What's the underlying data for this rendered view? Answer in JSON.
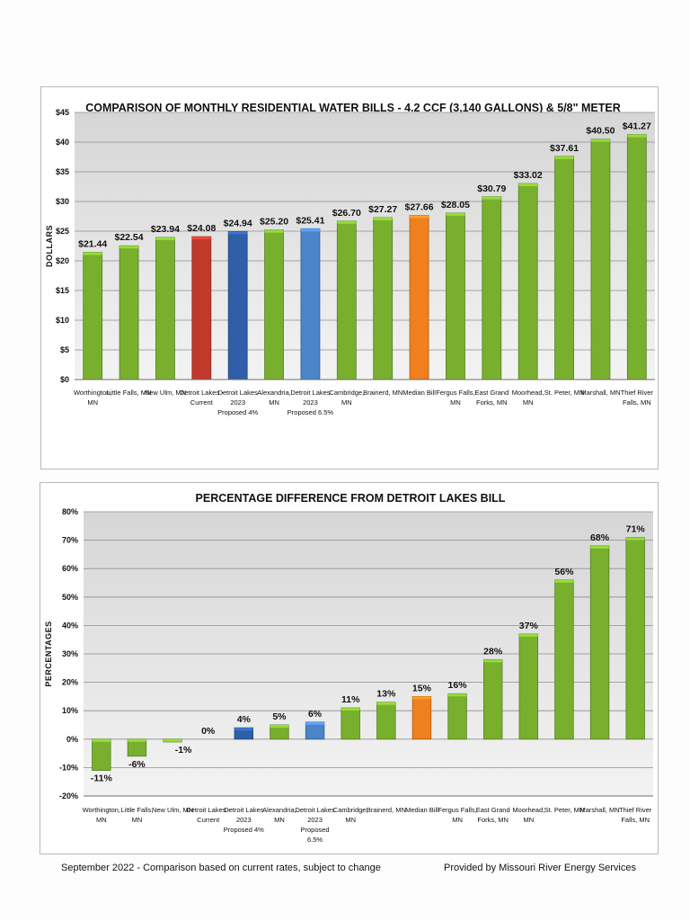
{
  "chart_data": [
    {
      "type": "bar",
      "title": "COMPARISON OF MONTHLY RESIDENTIAL WATER BILLS - 4.2 CCF (3,140 GALLONS) & 5/8\" METER",
      "ylabel": "DOLLARS",
      "xlabel": "",
      "ylim": [
        0,
        45
      ],
      "yticks": [
        "$0",
        "$5",
        "$10",
        "$15",
        "$20",
        "$25",
        "$30",
        "$35",
        "$40",
        "$45"
      ],
      "grid": true,
      "categories": [
        [
          "Worthington,",
          "MN"
        ],
        [
          "Little Falls, MN"
        ],
        [
          "New Ulm, MN"
        ],
        [
          "Detroit Lakes -",
          "Current"
        ],
        [
          "Detroit Lakes",
          "2023",
          "Proposed 4%"
        ],
        [
          "Alexandria,",
          "MN"
        ],
        [
          "Detroit Lakes",
          "2023",
          "Proposed 6.5%"
        ],
        [
          "Cambridge,",
          "MN"
        ],
        [
          "Brainerd, MN"
        ],
        [
          "Median Bill"
        ],
        [
          "Fergus Falls,",
          "MN"
        ],
        [
          "East Grand",
          "Forks, MN"
        ],
        [
          "Moorhead,",
          "MN"
        ],
        [
          "St. Peter, MN"
        ],
        [
          "Marshall, MN"
        ],
        [
          "Thief River",
          "Falls, MN"
        ]
      ],
      "values": [
        21.44,
        22.54,
        23.94,
        24.08,
        24.94,
        25.2,
        25.41,
        26.7,
        27.27,
        27.66,
        28.05,
        30.79,
        33.02,
        37.61,
        40.5,
        41.27
      ],
      "labels": [
        "$21.44",
        "$22.54",
        "$23.94",
        "$24.08",
        "$24.94",
        "$25.20",
        "$25.41",
        "$26.70",
        "$27.27",
        "$27.66",
        "$28.05",
        "$30.79",
        "$33.02",
        "$37.61",
        "$40.50",
        "$41.27"
      ],
      "colors": [
        "#78b02e",
        "#78b02e",
        "#78b02e",
        "#c0392b",
        "#2e5fa8",
        "#78b02e",
        "#4a84c9",
        "#78b02e",
        "#78b02e",
        "#f07f1e",
        "#78b02e",
        "#78b02e",
        "#78b02e",
        "#78b02e",
        "#78b02e",
        "#78b02e"
      ]
    },
    {
      "type": "bar",
      "title": "PERCENTAGE DIFFERENCE FROM DETROIT LAKES BILL",
      "ylabel": "PERCENTAGES",
      "xlabel": "",
      "ylim": [
        -20,
        80
      ],
      "yticks": [
        "-20%",
        "-10%",
        "0%",
        "10%",
        "20%",
        "30%",
        "40%",
        "50%",
        "60%",
        "70%",
        "80%"
      ],
      "grid": true,
      "categories": [
        [
          "Worthington,",
          "MN"
        ],
        [
          "Little Falls,",
          "MN"
        ],
        [
          "New Ulm, MN"
        ],
        [
          "Detroit Lakes -",
          "Current"
        ],
        [
          "Detroit Lakes",
          "2023",
          "Proposed 4%"
        ],
        [
          "Alexandria,",
          "MN"
        ],
        [
          "Detroit Lakes",
          "2023",
          "Proposed",
          "6.5%"
        ],
        [
          "Cambridge,",
          "MN"
        ],
        [
          "Brainerd, MN"
        ],
        [
          "Median Bill"
        ],
        [
          "Fergus Falls,",
          "MN"
        ],
        [
          "East Grand",
          "Forks, MN"
        ],
        [
          "Moorhead,",
          "MN"
        ],
        [
          "St. Peter, MN"
        ],
        [
          "Marshall, MN"
        ],
        [
          "Thief River",
          "Falls, MN"
        ]
      ],
      "values": [
        -11,
        -6,
        -1,
        0,
        4,
        5,
        6,
        11,
        13,
        15,
        16,
        28,
        37,
        56,
        68,
        71
      ],
      "labels": [
        "-11%",
        "-6%",
        "-1%",
        "0%",
        "4%",
        "5%",
        "6%",
        "11%",
        "13%",
        "15%",
        "16%",
        "28%",
        "37%",
        "56%",
        "68%",
        "71%"
      ],
      "colors": [
        "#78b02e",
        "#78b02e",
        "#78b02e",
        "#c0392b",
        "#2e5fa8",
        "#78b02e",
        "#4a84c9",
        "#78b02e",
        "#78b02e",
        "#f07f1e",
        "#78b02e",
        "#78b02e",
        "#78b02e",
        "#78b02e",
        "#78b02e",
        "#78b02e"
      ]
    }
  ],
  "footer": {
    "left": "September 2022 - Comparison based on current rates, subject to change",
    "right": "Provided by Missouri River Energy Services"
  }
}
